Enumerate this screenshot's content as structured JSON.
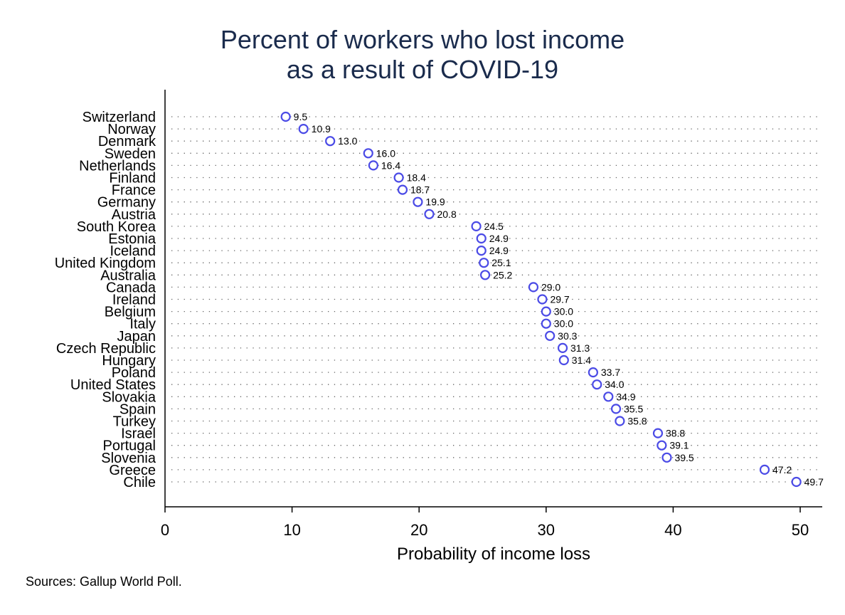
{
  "chart_data": {
    "type": "scatter",
    "title": [
      "Percent of workers who lost income",
      "as a result of COVID-19"
    ],
    "xlabel": "Probability of income loss",
    "note": "Sources: Gallup World Poll.",
    "xlim": [
      0,
      52
    ],
    "xticks": [
      0,
      10,
      20,
      30,
      40,
      50
    ],
    "marker_color": "#4b4be6",
    "categories": [
      "Switzerland",
      "Norway",
      "Denmark",
      "Sweden",
      "Netherlands",
      "Finland",
      "France",
      "Germany",
      "Austria",
      "South Korea",
      "Estonia",
      "Iceland",
      "United Kingdom",
      "Australia",
      "Canada",
      "Ireland",
      "Belgium",
      "Italy",
      "Japan",
      "Czech Republic",
      "Hungary",
      "Poland",
      "United States",
      "Slovakia",
      "Spain",
      "Turkey",
      "Israel",
      "Portugal",
      "Slovenia",
      "Greece",
      "Chile"
    ],
    "values": [
      9.5,
      10.9,
      13.0,
      16.0,
      16.4,
      18.4,
      18.7,
      19.9,
      20.8,
      24.5,
      24.9,
      24.9,
      25.1,
      25.2,
      29.0,
      29.7,
      30.0,
      30.0,
      30.3,
      31.3,
      31.4,
      33.7,
      34.0,
      34.9,
      35.5,
      35.8,
      38.8,
      39.1,
      39.5,
      47.2,
      49.7
    ],
    "value_labels": [
      "9.5",
      "10.9",
      "13.0",
      "16.0",
      "16.4",
      "18.4",
      "18.7",
      "19.9",
      "20.8",
      "24.5",
      "24.9",
      "24.9",
      "25.1",
      "25.2",
      "29.0",
      "29.7",
      "30.0",
      "30.0",
      "30.3",
      "31.3",
      "31.4",
      "33.7",
      "34.0",
      "34.9",
      "35.5",
      "35.8",
      "38.8",
      "39.1",
      "39.5",
      "47.2",
      "49.7"
    ]
  }
}
